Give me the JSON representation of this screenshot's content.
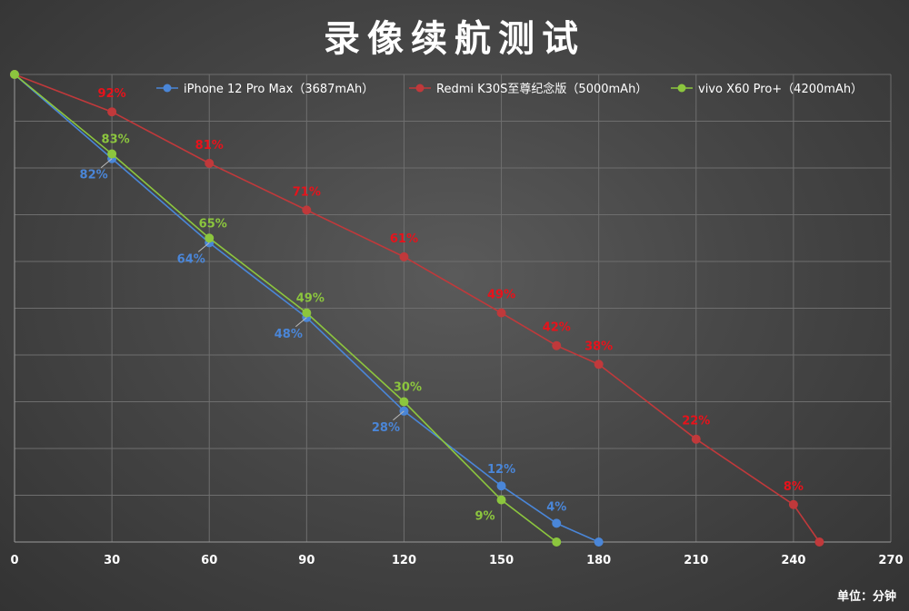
{
  "title": "录像续航测试",
  "unit_label": "单位：分钟",
  "colors": {
    "iphone": "#4a86d8",
    "redmi": "#c0393b",
    "vivo": "#8cc63e",
    "redmi_label": "#e8121b",
    "grid": "#6e6e6e",
    "axis": "#9a9a9a"
  },
  "chart_data": {
    "type": "line",
    "title": "录像续航测试",
    "xlabel": "单位：分钟",
    "ylabel": "",
    "xlim": [
      0,
      270
    ],
    "ylim": [
      0,
      100
    ],
    "x_ticks": [
      "0",
      "30",
      "60",
      "90",
      "120",
      "150",
      "180",
      "210",
      "240",
      "270"
    ],
    "grid": true,
    "legend_position": "top",
    "series": [
      {
        "key": "iphone",
        "name": "iPhone 12 Pro Max（3687mAh）",
        "points": [
          {
            "x": 0,
            "y": 100,
            "label": ""
          },
          {
            "x": 30,
            "y": 82,
            "label": "82%"
          },
          {
            "x": 60,
            "y": 64,
            "label": "64%"
          },
          {
            "x": 90,
            "y": 48,
            "label": "48%"
          },
          {
            "x": 120,
            "y": 28,
            "label": "28%"
          },
          {
            "x": 150,
            "y": 12,
            "label": "12%"
          },
          {
            "x": 167,
            "y": 4,
            "label": "4%"
          },
          {
            "x": 180,
            "y": 0,
            "label": ""
          }
        ]
      },
      {
        "key": "redmi",
        "name": "Redmi K30S至尊纪念版（5000mAh）",
        "points": [
          {
            "x": 0,
            "y": 100,
            "label": ""
          },
          {
            "x": 30,
            "y": 92,
            "label": "92%"
          },
          {
            "x": 60,
            "y": 81,
            "label": "81%"
          },
          {
            "x": 90,
            "y": 71,
            "label": "71%"
          },
          {
            "x": 120,
            "y": 61,
            "label": "61%"
          },
          {
            "x": 150,
            "y": 49,
            "label": "49%"
          },
          {
            "x": 167,
            "y": 42,
            "label": "42%"
          },
          {
            "x": 180,
            "y": 38,
            "label": "38%"
          },
          {
            "x": 210,
            "y": 22,
            "label": "22%"
          },
          {
            "x": 240,
            "y": 8,
            "label": "8%"
          },
          {
            "x": 248,
            "y": 0,
            "label": ""
          }
        ]
      },
      {
        "key": "vivo",
        "name": "vivo X60 Pro+（4200mAh）",
        "points": [
          {
            "x": 0,
            "y": 100,
            "label": ""
          },
          {
            "x": 30,
            "y": 83,
            "label": "83%"
          },
          {
            "x": 60,
            "y": 65,
            "label": "65%"
          },
          {
            "x": 90,
            "y": 49,
            "label": "49%"
          },
          {
            "x": 120,
            "y": 30,
            "label": "30%"
          },
          {
            "x": 150,
            "y": 9,
            "label": "9%"
          },
          {
            "x": 167,
            "y": 0,
            "label": ""
          }
        ]
      }
    ]
  }
}
